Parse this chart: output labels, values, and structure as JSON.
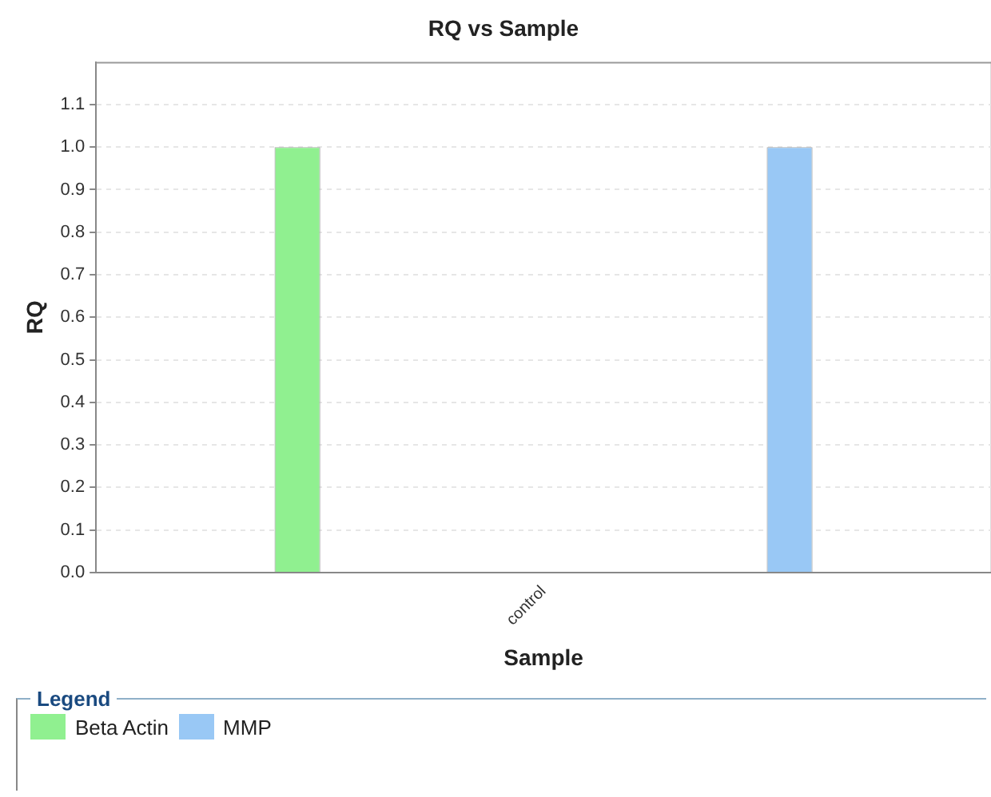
{
  "chart_data": {
    "type": "bar",
    "title": "RQ vs Sample",
    "xlabel": "Sample",
    "ylabel": "RQ",
    "legend_title": "Legend",
    "categories": [
      "control"
    ],
    "series": [
      {
        "name": "Beta Actin",
        "color": "#90f090",
        "values": [
          1.0
        ]
      },
      {
        "name": "MMP",
        "color": "#99c8f5",
        "values": [
          1.0
        ]
      }
    ],
    "ylim": [
      0,
      1.2
    ],
    "yticks": [
      {
        "value": 0,
        "label": "0.0"
      },
      {
        "value": 0.1,
        "label": "0.1"
      },
      {
        "value": 0.2,
        "label": "0.2"
      },
      {
        "value": 0.3,
        "label": "0.3"
      },
      {
        "value": 0.4,
        "label": "0.4"
      },
      {
        "value": 0.5,
        "label": "0.5"
      },
      {
        "value": 0.6,
        "label": "0.6"
      },
      {
        "value": 0.7,
        "label": "0.7"
      },
      {
        "value": 0.8,
        "label": "0.8"
      },
      {
        "value": 0.9,
        "label": "0.9"
      },
      {
        "value": 1.0,
        "label": "1.0"
      },
      {
        "value": 1.1,
        "label": "1.1"
      }
    ],
    "grid": true,
    "legend": "bottom"
  }
}
